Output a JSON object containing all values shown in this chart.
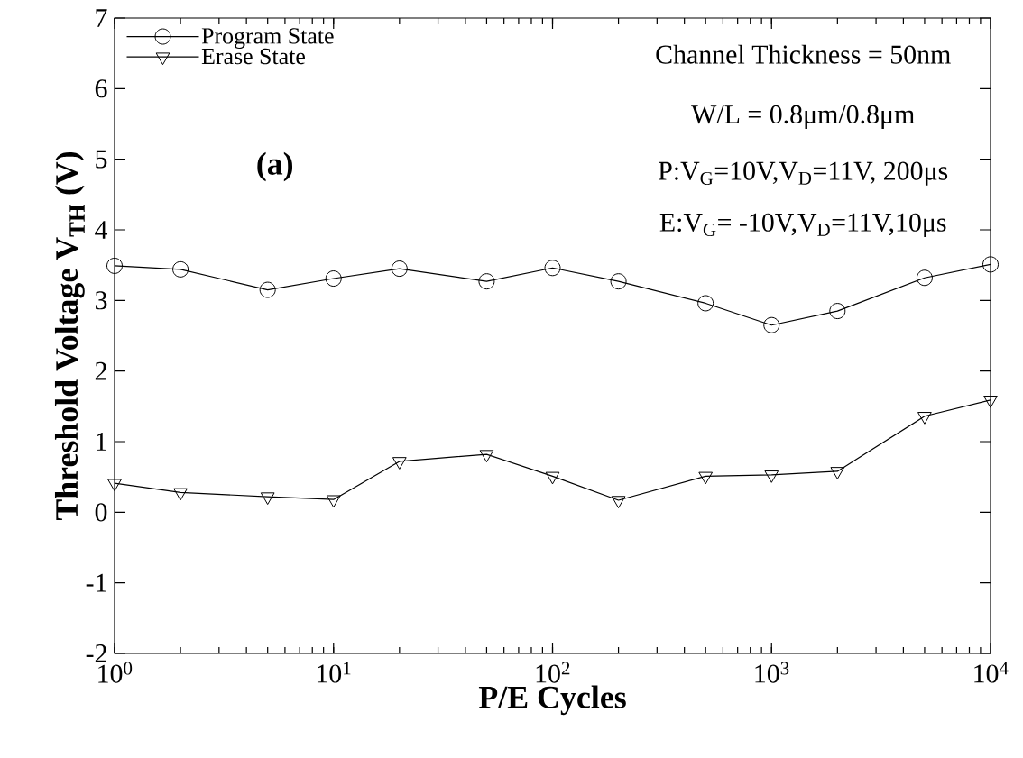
{
  "chart_data": {
    "type": "line",
    "xlabel": "P/E Cycles",
    "ylabel": "Threshold Voltage V$_{TH}$ (V)",
    "x": [
      1,
      2,
      5,
      10,
      20,
      50,
      100,
      200,
      500,
      1000,
      2000,
      5000,
      10000
    ],
    "series": [
      {
        "name": "Program State",
        "color": "#000000",
        "marker": "circle",
        "values": [
          3.49,
          3.44,
          3.15,
          3.31,
          3.45,
          3.27,
          3.46,
          3.27,
          2.96,
          2.65,
          2.85,
          3.32,
          3.51
        ]
      },
      {
        "name": "Erase State",
        "color": "#000000",
        "marker": "triangle",
        "values": [
          0.41,
          0.28,
          0.22,
          0.18,
          0.72,
          0.82,
          0.51,
          0.17,
          0.51,
          0.53,
          0.58,
          1.36,
          1.59
        ]
      }
    ],
    "log": "x",
    "legend": "top left",
    "line_style": "solid",
    "xlim": [
      1,
      10000
    ],
    "xticks": [
      {
        "value": 1,
        "label": "10$^{0}$"
      },
      {
        "value": 10,
        "label": "10$^{1}$"
      },
      {
        "value": 100,
        "label": "10$^{2}$"
      },
      {
        "value": 1000,
        "label": "10$^{3}$"
      },
      {
        "value": 10000,
        "label": "10$^{4}$"
      }
    ],
    "ylim": [
      -2,
      7
    ],
    "yticks": [
      -2,
      -1,
      0,
      1,
      2,
      3,
      4,
      5,
      6,
      7
    ],
    "annotations": [
      "Channel Thickness = 50nm",
      "W/L = 0.8μm/0.8μm",
      "P:V$_{G}$=10V,V$_{D}$=11V, 200μs",
      "E:V$_{G}$= -10V,V$_{D}$=11V,10μs",
      "(a)"
    ]
  }
}
